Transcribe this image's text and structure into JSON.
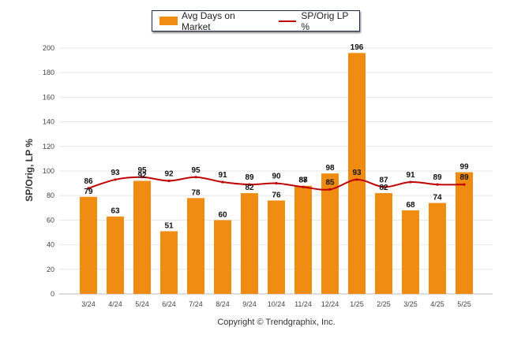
{
  "legend": {
    "bar_label": "Avg Days on Market",
    "line_label": "SP/Orig LP %"
  },
  "copyright": "Copyright © Trendgraphix, Inc.",
  "chart_data": {
    "type": "bar",
    "categories": [
      "3/24",
      "4/24",
      "5/24",
      "6/24",
      "7/24",
      "8/24",
      "9/24",
      "10/24",
      "11/24",
      "12/24",
      "1/25",
      "2/25",
      "3/25",
      "4/25",
      "5/25"
    ],
    "series": [
      {
        "name": "Avg Days on Market",
        "type": "bar",
        "color": "#f08c12",
        "values": [
          79,
          63,
          92,
          51,
          78,
          60,
          82,
          76,
          88,
          98,
          196,
          82,
          68,
          74,
          99
        ]
      },
      {
        "name": "SP/Orig LP %",
        "type": "line",
        "color": "#c00000",
        "values": [
          86,
          93,
          95,
          92,
          95,
          91,
          89,
          90,
          87,
          85,
          93,
          87,
          91,
          89,
          89
        ]
      }
    ],
    "ylabel": "SP/Orig, LP %",
    "xlabel": "",
    "ylim": [
      0,
      200
    ],
    "yticks": [
      0,
      20,
      40,
      60,
      80,
      100,
      120,
      140,
      160,
      180,
      200
    ],
    "grid": true,
    "legend_position": "top-center"
  }
}
